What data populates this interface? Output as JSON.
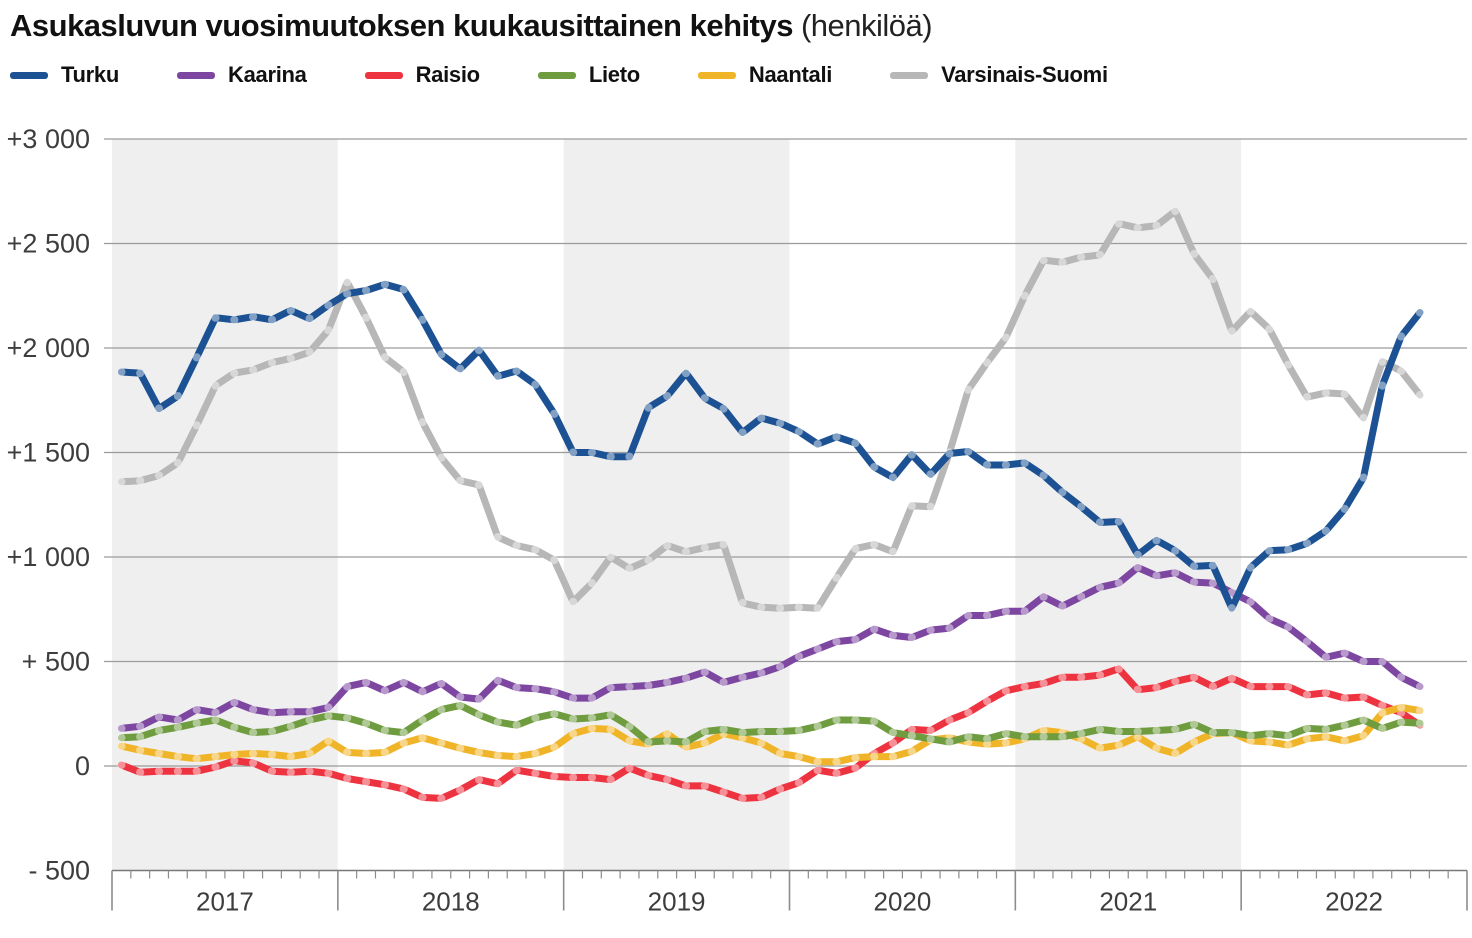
{
  "title": {
    "main": "Asukasluvun vuosimuutoksen kuukausittainen kehitys",
    "suffix": "(henkilöä)"
  },
  "chart_data": {
    "type": "line",
    "title": "Asukasluvun vuosimuutoksen kuukausittainen kehitys (henkilöä)",
    "xlabel": "",
    "ylabel": "henkilöä",
    "x_start": "2017-01",
    "x_end": "2022-10",
    "x_years": [
      2017,
      2018,
      2019,
      2020,
      2021,
      2022
    ],
    "months_per_year": 12,
    "n_points": 70,
    "ylim": [
      -500,
      3000
    ],
    "grid": true,
    "legend_position": "top",
    "shaded_years": [
      2017,
      2019,
      2021
    ],
    "band_color": "#efefef",
    "grid_color": "#9b9b9b",
    "axis_color": "#787878",
    "tick_label_color": "#3d3d3d",
    "marker_color": "rgba(255,255,255,0.45)",
    "y_ticks": [
      {
        "value": 3000,
        "label": "+3 000"
      },
      {
        "value": 2500,
        "label": "+2 500"
      },
      {
        "value": 2000,
        "label": "+2 000"
      },
      {
        "value": 1500,
        "label": "+1 500"
      },
      {
        "value": 1000,
        "label": "+1 000"
      },
      {
        "value": 500,
        "label": "+ 500"
      },
      {
        "value": 0,
        "label": "0"
      },
      {
        "value": -500,
        "label": "- 500"
      }
    ],
    "series": [
      {
        "name": "Turku",
        "color": "#1c5293",
        "values": [
          1885,
          1880,
          1710,
          1770,
          1955,
          2145,
          2135,
          2150,
          2135,
          2180,
          2140,
          2205,
          2260,
          2275,
          2305,
          2280,
          2135,
          1970,
          1900,
          1990,
          1865,
          1890,
          1825,
          1685,
          1500,
          1500,
          1480,
          1480,
          1715,
          1770,
          1880,
          1760,
          1710,
          1595,
          1665,
          1640,
          1600,
          1540,
          1575,
          1545,
          1430,
          1380,
          1490,
          1395,
          1495,
          1505,
          1440,
          1440,
          1450,
          1390,
          1310,
          1240,
          1165,
          1170,
          1010,
          1080,
          1030,
          955,
          960,
          755,
          950,
          1030,
          1035,
          1065,
          1125,
          1230,
          1380,
          1820,
          2055,
          2170
        ]
      },
      {
        "name": "Kaarina",
        "color": "#7d47a1",
        "values": [
          180,
          190,
          235,
          220,
          270,
          255,
          305,
          270,
          255,
          260,
          260,
          280,
          380,
          400,
          360,
          400,
          355,
          395,
          330,
          320,
          410,
          375,
          370,
          355,
          325,
          325,
          375,
          380,
          385,
          400,
          420,
          450,
          400,
          425,
          445,
          475,
          525,
          560,
          595,
          605,
          655,
          625,
          615,
          650,
          660,
          720,
          720,
          740,
          740,
          810,
          765,
          810,
          855,
          875,
          950,
          910,
          925,
          880,
          875,
          830,
          785,
          705,
          665,
          595,
          520,
          540,
          500,
          500,
          425,
          380
        ]
      },
      {
        "name": "Raisio",
        "color": "#ee3340",
        "values": [
          5,
          -30,
          -25,
          -25,
          -25,
          -5,
          25,
          15,
          -25,
          -30,
          -25,
          -35,
          -60,
          -75,
          -90,
          -110,
          -150,
          -155,
          -115,
          -65,
          -85,
          -20,
          -35,
          -50,
          -55,
          -55,
          -65,
          -10,
          -45,
          -65,
          -95,
          -95,
          -125,
          -155,
          -150,
          -110,
          -80,
          -20,
          -35,
          -10,
          60,
          110,
          175,
          170,
          220,
          255,
          310,
          360,
          380,
          395,
          425,
          425,
          435,
          465,
          365,
          375,
          405,
          425,
          380,
          420,
          380,
          380,
          380,
          340,
          350,
          325,
          330,
          290,
          255,
          195
        ]
      },
      {
        "name": "Lieto",
        "color": "#6e9c3f",
        "values": [
          135,
          140,
          170,
          185,
          205,
          220,
          185,
          160,
          165,
          190,
          220,
          240,
          230,
          205,
          170,
          160,
          220,
          270,
          290,
          245,
          210,
          195,
          230,
          250,
          225,
          230,
          245,
          190,
          115,
          120,
          115,
          165,
          175,
          160,
          165,
          165,
          170,
          190,
          220,
          220,
          215,
          160,
          145,
          130,
          115,
          140,
          130,
          155,
          140,
          140,
          140,
          155,
          175,
          165,
          165,
          170,
          175,
          200,
          160,
          160,
          145,
          155,
          145,
          180,
          175,
          195,
          220,
          180,
          210,
          205
        ]
      },
      {
        "name": "Naantali",
        "color": "#f0b429",
        "values": [
          95,
          75,
          60,
          45,
          35,
          45,
          55,
          60,
          55,
          45,
          60,
          120,
          65,
          60,
          65,
          110,
          135,
          110,
          85,
          65,
          50,
          45,
          60,
          90,
          155,
          180,
          175,
          120,
          105,
          155,
          90,
          110,
          155,
          135,
          110,
          60,
          45,
          20,
          20,
          40,
          45,
          45,
          70,
          125,
          135,
          115,
          105,
          110,
          130,
          170,
          160,
          130,
          85,
          100,
          140,
          85,
          60,
          115,
          155,
          160,
          120,
          115,
          100,
          130,
          140,
          120,
          145,
          255,
          280,
          265
        ]
      },
      {
        "name": "Varsinais-Suomi",
        "color": "#b7b7b7",
        "values": [
          1360,
          1365,
          1390,
          1450,
          1630,
          1820,
          1880,
          1895,
          1930,
          1950,
          1980,
          2085,
          2315,
          2145,
          1955,
          1885,
          1645,
          1475,
          1365,
          1345,
          1095,
          1055,
          1035,
          985,
          785,
          875,
          1000,
          945,
          985,
          1055,
          1025,
          1045,
          1060,
          780,
          760,
          755,
          760,
          755,
          900,
          1040,
          1060,
          1025,
          1245,
          1240,
          1500,
          1800,
          1930,
          2050,
          2250,
          2420,
          2410,
          2435,
          2445,
          2595,
          2575,
          2585,
          2655,
          2450,
          2330,
          2080,
          2175,
          2090,
          1920,
          1765,
          1785,
          1780,
          1665,
          1935,
          1890,
          1775
        ]
      }
    ]
  }
}
